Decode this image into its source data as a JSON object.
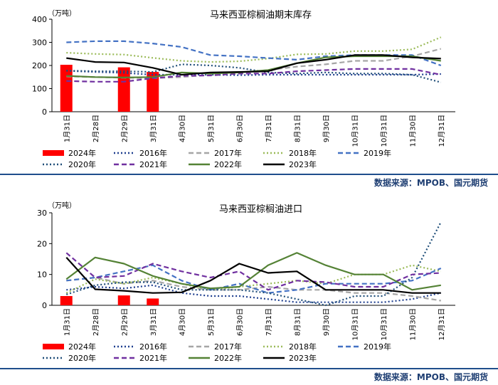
{
  "source_label": "数据来源：MPOB、国元期货",
  "chart_data": [
    {
      "type": "line",
      "title": "马来西亚棕榈油期末库存",
      "ylabel": "（万吨）",
      "ylim": [
        0,
        400
      ],
      "yticks": [
        0,
        100,
        200,
        300,
        400
      ],
      "categories": [
        "1月31日",
        "2月28日",
        "2月29日",
        "3月31日",
        "4月30日",
        "5月31日",
        "6月30日",
        "7月31日",
        "8月31日",
        "9月30日",
        "10月31日",
        "10月31日",
        "11月30日",
        "12月31日"
      ],
      "bar_series": {
        "name": "2024年",
        "color": "#ff0000",
        "values": [
          203,
          null,
          192,
          172,
          null,
          null,
          null,
          null,
          null,
          null,
          null,
          null,
          null,
          null
        ]
      },
      "series": [
        {
          "name": "2016年",
          "color": "#1f3f8f",
          "dash": "dot",
          "values": [
            177,
            172,
            168,
            160,
            160,
            160,
            158,
            160,
            160,
            160,
            160,
            160,
            160,
            163
          ]
        },
        {
          "name": "2017年",
          "color": "#a6a6a6",
          "dash": "dash",
          "values": [
            153,
            150,
            147,
            145,
            150,
            160,
            170,
            180,
            195,
            205,
            220,
            220,
            240,
            272
          ]
        },
        {
          "name": "2018年",
          "color": "#9bbb59",
          "dash": "dot",
          "values": [
            255,
            250,
            247,
            233,
            220,
            215,
            218,
            230,
            248,
            250,
            262,
            262,
            270,
            322
          ]
        },
        {
          "name": "2019年",
          "color": "#4472c4",
          "dash": "dash",
          "values": [
            300,
            305,
            305,
            295,
            280,
            245,
            240,
            232,
            225,
            240,
            245,
            245,
            245,
            200
          ]
        },
        {
          "name": "2020年",
          "color": "#1f4e79",
          "dash": "dot",
          "values": [
            178,
            175,
            175,
            172,
            205,
            200,
            190,
            170,
            165,
            170,
            165,
            165,
            160,
            127
          ]
        },
        {
          "name": "2021年",
          "color": "#7030a0",
          "dash": "dash",
          "values": [
            133,
            130,
            130,
            145,
            155,
            157,
            165,
            165,
            175,
            180,
            185,
            185,
            185,
            160
          ]
        },
        {
          "name": "2022年",
          "color": "#548235",
          "dash": "solid",
          "values": [
            155,
            150,
            148,
            150,
            170,
            165,
            170,
            180,
            210,
            235,
            240,
            240,
            240,
            220
          ]
        },
        {
          "name": "2023年",
          "color": "#000000",
          "dash": "solid",
          "values": [
            232,
            215,
            213,
            190,
            160,
            170,
            172,
            175,
            210,
            225,
            245,
            245,
            235,
            230
          ]
        }
      ]
    },
    {
      "type": "line",
      "title": "马来西亚棕榈油进口",
      "ylabel": "（万吨）",
      "ylim": [
        0,
        30
      ],
      "yticks": [
        0,
        10,
        20,
        30
      ],
      "categories": [
        "1月31日",
        "2月28日",
        "2月29日",
        "3月31日",
        "4月30日",
        "5月31日",
        "6月30日",
        "7月31日",
        "8月31日",
        "9月30日",
        "10月31日",
        "10月31日",
        "11月30日",
        "12月31日"
      ],
      "bar_series": {
        "name": "2024年",
        "color": "#ff0000",
        "values": [
          3,
          null,
          3.2,
          2.2,
          null,
          null,
          null,
          null,
          null,
          null,
          null,
          null,
          null,
          null
        ]
      },
      "series": [
        {
          "name": "2016年",
          "color": "#1f3f8f",
          "dash": "dot",
          "values": [
            5,
            6,
            5.5,
            6.5,
            4,
            3,
            3,
            2,
            1,
            1,
            1,
            1,
            2,
            4
          ]
        },
        {
          "name": "2017年",
          "color": "#a6a6a6",
          "dash": "dash",
          "values": [
            8,
            9,
            7,
            8,
            6,
            5,
            5,
            6,
            5,
            5,
            4,
            4,
            3,
            1.5
          ]
        },
        {
          "name": "2018年",
          "color": "#9bbb59",
          "dash": "dot",
          "values": [
            4,
            8.5,
            7,
            9,
            7,
            5,
            6,
            7,
            8,
            7,
            10,
            10,
            13,
            11
          ]
        },
        {
          "name": "2019年",
          "color": "#4472c4",
          "dash": "dash",
          "values": [
            8,
            9,
            11,
            13,
            8,
            5,
            7,
            4,
            5,
            7,
            7,
            7,
            8,
            12
          ]
        },
        {
          "name": "2020年",
          "color": "#1f4e79",
          "dash": "dot",
          "values": [
            3.5,
            6.5,
            7.5,
            7.5,
            5,
            5,
            5,
            4,
            2,
            0,
            3,
            3,
            9,
            27
          ]
        },
        {
          "name": "2021年",
          "color": "#7030a0",
          "dash": "dash",
          "values": [
            17,
            9,
            9.5,
            13.5,
            11,
            9,
            11,
            5,
            8,
            7.5,
            6,
            6,
            10,
            10.5
          ]
        },
        {
          "name": "2022年",
          "color": "#548235",
          "dash": "solid",
          "values": [
            8.5,
            15.5,
            13.5,
            9.5,
            7,
            5.5,
            6,
            13,
            17,
            13,
            10,
            10,
            5,
            6.5
          ]
        },
        {
          "name": "2023年",
          "color": "#000000",
          "dash": "solid",
          "values": [
            15.5,
            5.2,
            4.7,
            4,
            4.2,
            8,
            13.5,
            10.5,
            11,
            5,
            5,
            5,
            4,
            4
          ]
        }
      ]
    }
  ]
}
